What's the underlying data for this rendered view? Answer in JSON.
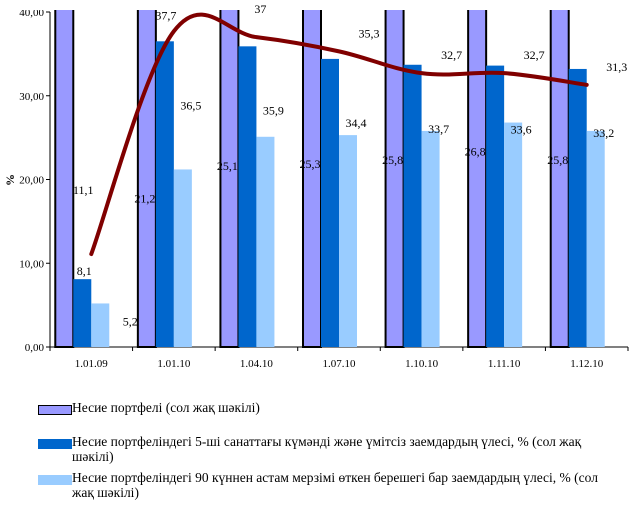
{
  "chart_data": {
    "type": "bar+line",
    "categories": [
      "1.01.09",
      "1.01.10",
      "1.04.10",
      "1.07.10",
      "1.10.10",
      "1.11.10",
      "1.12.10"
    ],
    "ylabel": "%",
    "ylim": [
      0,
      40
    ],
    "yticks": [
      "0,00",
      "10,00",
      "20,00",
      "30,00",
      "40,00"
    ],
    "series": [
      {
        "name": "Несие портфелі (сол жақ шәкілі)",
        "kind": "bar",
        "color": "#9999ff",
        "values": [
          null,
          null,
          null,
          null,
          null,
          null,
          null
        ]
      },
      {
        "name": "Несие портфеліндегі  5-ші санаттағы күмәнді және үмітсіз заемдардың үлесі, % (сол жақ шәкілі)",
        "kind": "bar",
        "color": "#0066cc",
        "values": [
          8.1,
          36.5,
          35.9,
          34.4,
          33.7,
          33.6,
          33.2
        ],
        "labels": [
          "8,1",
          "36,5",
          "35,9",
          "34,4",
          "33,7",
          "33,6",
          "33,2"
        ]
      },
      {
        "name": "Несие портфеліндегі 90 күннен астам мерзімі өткен берешегі бар заемдардың үлесі, % (сол жақ шәкілі)",
        "kind": "bar",
        "color": "#99ccff",
        "values": [
          5.2,
          21.2,
          25.1,
          25.3,
          25.8,
          26.8,
          25.8
        ],
        "labels": [
          "5,2",
          "21,2",
          "25,1",
          "25,3",
          "25,8",
          "26,8",
          "25,8"
        ]
      },
      {
        "kind": "line",
        "color": "#800000",
        "values": [
          11.1,
          37.7,
          37,
          35.3,
          32.7,
          32.7,
          31.3
        ],
        "labels": [
          "11,1",
          "37,7",
          "37",
          "35,3",
          "32,7",
          "32,7",
          "31,3"
        ]
      }
    ],
    "grid": false,
    "legend_position": "bottom"
  }
}
